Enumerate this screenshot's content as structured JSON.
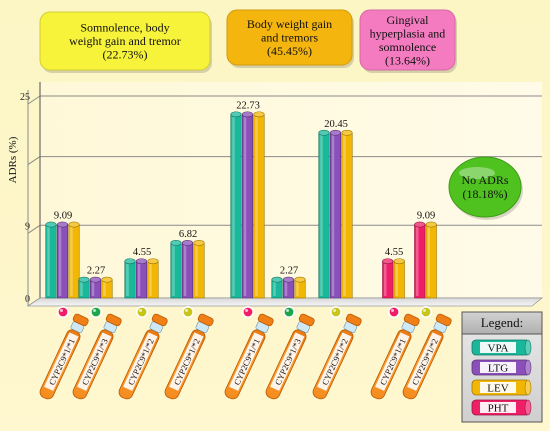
{
  "chart_data": {
    "type": "bar",
    "ylabel": "ADRs (%)",
    "ylim": [
      0,
      25
    ],
    "yticks": [
      "25",
      "9",
      "0"
    ],
    "grid": true,
    "legend_title": "Legend:",
    "legend_position": "bottom-right",
    "series": [
      {
        "name": "VPA",
        "color": "#1ab89a"
      },
      {
        "name": "LTG",
        "color": "#8a4fb8"
      },
      {
        "name": "LEV",
        "color": "#f2b705"
      },
      {
        "name": "PHT",
        "color": "#ee1f66"
      }
    ],
    "groups": [
      {
        "label": "9.09",
        "value": 9.09,
        "bars": [
          "VPA",
          "LTG",
          "LEV"
        ],
        "dot": "#ee1f66",
        "genotype": "CYP2C9*1/*1"
      },
      {
        "label": "2.27",
        "value": 2.27,
        "bars": [
          "VPA",
          "LTG",
          "LEV"
        ],
        "dot": "#1fa64a",
        "genotype": "CYP2C9*1/*3"
      },
      {
        "label": "4.55",
        "value": 4.55,
        "bars": [
          "VPA",
          "LTG",
          "LEV"
        ],
        "dot": "#c7c51a",
        "genotype": "CYP2C9*1/*2"
      },
      {
        "label": "6.82",
        "value": 6.82,
        "bars": [
          "VPA",
          "LTG",
          "LEV"
        ],
        "dot": "#c7c51a",
        "genotype": "CYP2C9*1/*2"
      },
      {
        "label": "22.73",
        "value": 22.73,
        "bars": [
          "VPA",
          "LTG",
          "LEV"
        ],
        "dot": "#ee1f66",
        "genotype": "CYP2C9*1/*1"
      },
      {
        "label": "2.27",
        "value": 2.27,
        "bars": [
          "VPA",
          "LTG",
          "LEV"
        ],
        "dot": "#1fa64a",
        "genotype": "CYP2C9*1/*3"
      },
      {
        "label": "20.45",
        "value": 20.45,
        "bars": [
          "VPA",
          "LTG",
          "LEV"
        ],
        "dot": "#c7c51a",
        "genotype": "CYP2C9*1/*2"
      },
      {
        "label": "4.55",
        "value": 4.55,
        "bars": [
          "PHT",
          "LEV"
        ],
        "dot": "#ee1f66",
        "genotype": "CYP2C9*1/*1"
      },
      {
        "label": "9.09",
        "value": 9.09,
        "bars": [
          "PHT",
          "LEV"
        ],
        "dot": "#c7c51a",
        "genotype": "CYP2C9*1/*2"
      }
    ],
    "annotations": [
      {
        "lines": [
          "Somnolence, body",
          "weight gain and tremor",
          "(22.73%)"
        ],
        "fill": "#f7f23a"
      },
      {
        "lines": [
          "Body weight gain",
          "and tremors",
          "(45.45%)"
        ],
        "fill": "#f5b50f"
      },
      {
        "lines": [
          "Gingival",
          "hyperplasia and",
          "somnolence",
          "(13.64%)"
        ],
        "fill": "#f57bc0"
      },
      {
        "lines": [
          "No ADRs",
          "(18.18%)"
        ],
        "fill": "#4fc21f"
      }
    ]
  }
}
